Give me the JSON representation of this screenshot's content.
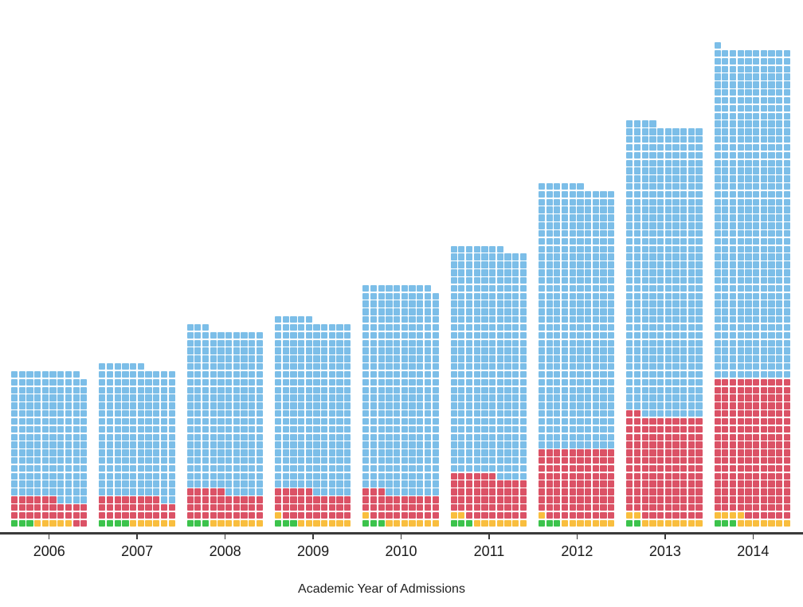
{
  "chart_data": {
    "type": "bar",
    "variant": "waffle",
    "title": "",
    "xlabel": "Academic Year of Admissions",
    "grid": "off",
    "legend": "none",
    "columns_per_block": 10,
    "fill_order_bottom_to_top": [
      "green",
      "yellow",
      "red",
      "blue"
    ],
    "colors": {
      "blue": "#7CBEE8",
      "red": "#DB5266",
      "yellow": "#F9BE3E",
      "green": "#3CC34C",
      "axis": "#3a3a3a"
    },
    "categories": [
      "2006",
      "2007",
      "2008",
      "2009",
      "2010",
      "2011",
      "2012",
      "2013",
      "2014"
    ],
    "years": [
      {
        "label": "2006",
        "total": 199,
        "counts": {
          "green": 3,
          "yellow": 5,
          "red": 28,
          "blue": 163
        }
      },
      {
        "label": "2007",
        "total": 206,
        "counts": {
          "green": 4,
          "yellow": 6,
          "red": 28,
          "blue": 168
        }
      },
      {
        "label": "2008",
        "total": 253,
        "counts": {
          "green": 3,
          "yellow": 7,
          "red": 35,
          "blue": 208
        }
      },
      {
        "label": "2009",
        "total": 265,
        "counts": {
          "green": 3,
          "yellow": 8,
          "red": 34,
          "blue": 220
        }
      },
      {
        "label": "2010",
        "total": 309,
        "counts": {
          "green": 3,
          "yellow": 8,
          "red": 32,
          "blue": 266
        }
      },
      {
        "label": "2011",
        "total": 357,
        "counts": {
          "green": 3,
          "yellow": 9,
          "red": 54,
          "blue": 291
        }
      },
      {
        "label": "2012",
        "total": 436,
        "counts": {
          "green": 3,
          "yellow": 8,
          "red": 89,
          "blue": 336
        }
      },
      {
        "label": "2013",
        "total": 514,
        "counts": {
          "green": 2,
          "yellow": 10,
          "red": 130,
          "blue": 372
        }
      },
      {
        "label": "2014",
        "total": 611,
        "counts": {
          "green": 3,
          "yellow": 11,
          "red": 176,
          "blue": 421
        }
      }
    ]
  }
}
